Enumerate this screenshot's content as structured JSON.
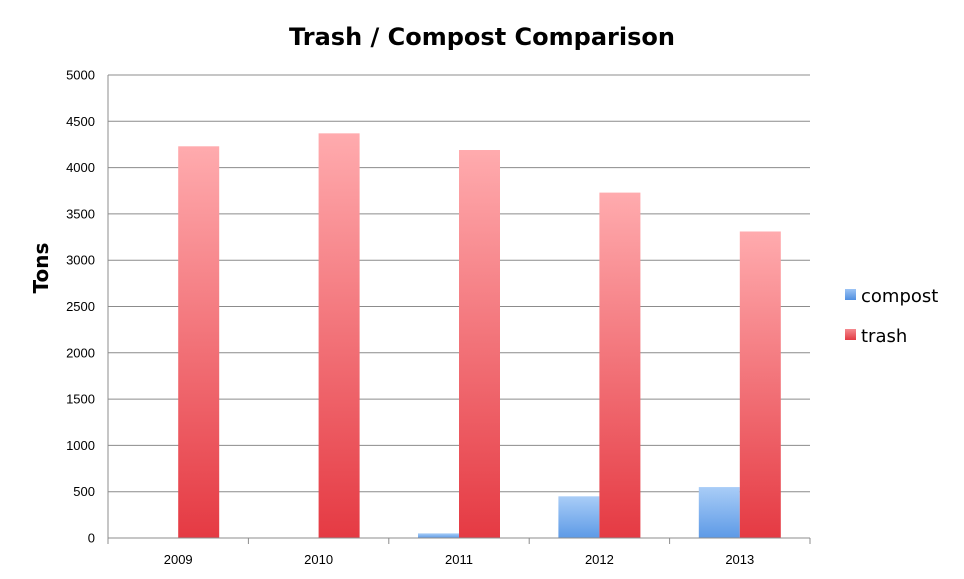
{
  "chart_data": {
    "type": "bar",
    "title": "Trash / Compost Comparison",
    "xlabel": "",
    "ylabel": "Tons",
    "ylim": [
      0,
      5000
    ],
    "yticks": [
      0,
      500,
      1000,
      1500,
      2000,
      2500,
      3000,
      3500,
      4000,
      4500,
      5000
    ],
    "categories": [
      "2009",
      "2010",
      "2011",
      "2012",
      "2013"
    ],
    "series": [
      {
        "name": "compost",
        "values": [
          0,
          0,
          50,
          450,
          550
        ],
        "color": "#6aa6ec"
      },
      {
        "name": "trash",
        "values": [
          4230,
          4370,
          4190,
          3730,
          3310
        ],
        "color": "#e9535a"
      }
    ],
    "grid": true,
    "legend_position": "right"
  }
}
